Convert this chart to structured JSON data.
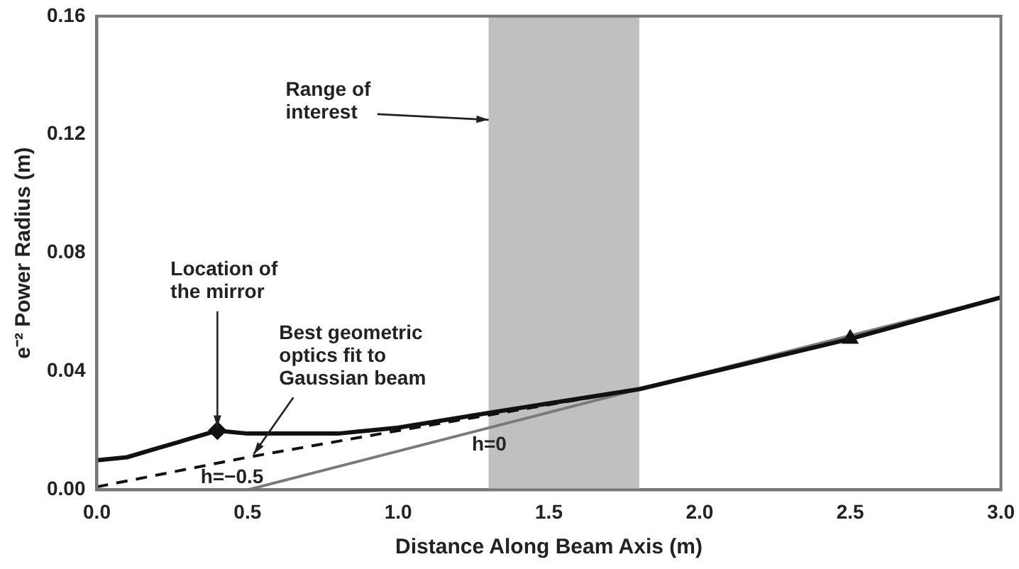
{
  "chart_data": {
    "type": "line",
    "xlabel": "Distance Along Beam Axis (m)",
    "ylabel": "e⁻² Power Radius (m)",
    "xlim": [
      0,
      3
    ],
    "ylim": [
      0,
      0.16
    ],
    "xticks": [
      {
        "value": 0,
        "label": "0.0"
      },
      {
        "value": 0.5,
        "label": "0.5"
      },
      {
        "value": 1,
        "label": "1.0"
      },
      {
        "value": 1.5,
        "label": "1.5"
      },
      {
        "value": 2,
        "label": "2.0"
      },
      {
        "value": 2.5,
        "label": "2.5"
      },
      {
        "value": 3,
        "label": "3.0"
      }
    ],
    "yticks": [
      {
        "value": 0,
        "label": "0.00"
      },
      {
        "value": 0.04,
        "label": "0.04"
      },
      {
        "value": 0.08,
        "label": "0.08"
      },
      {
        "value": 0.12,
        "label": "0.12"
      },
      {
        "value": 0.16,
        "label": "0.16"
      }
    ],
    "grid": false,
    "legend": false,
    "series": [
      {
        "color": "#111111",
        "x": [
          0,
          0.1,
          0.2,
          0.3,
          0.4,
          0.5,
          0.6,
          0.8,
          1.0,
          1.3,
          1.8,
          2.5,
          3.0
        ],
        "values": [
          0.01,
          0.011,
          0.014,
          0.017,
          0.02,
          0.019,
          0.019,
          0.019,
          0.021,
          0.026,
          0.034,
          0.051,
          0.065
        ],
        "line_style": "solid",
        "marker": "none"
      },
      {
        "name": "h=−0.5",
        "color": "#111111",
        "x": [
          0,
          0.5,
          1.0,
          1.8
        ],
        "values": [
          0.001,
          0.011,
          0.02,
          0.034
        ],
        "line_style": "dashed",
        "marker": "none"
      },
      {
        "name": "h=0",
        "color": "#7a7a7a",
        "x": [
          0.5,
          1.8,
          3.0
        ],
        "values": [
          0,
          0.034,
          0.065
        ],
        "line_style": "solid",
        "marker": "none"
      },
      {
        "type": "scatter",
        "color": "#111111",
        "x": [
          0.4
        ],
        "values": [
          0.02
        ],
        "marker": "diamond"
      },
      {
        "type": "scatter",
        "color": "#111111",
        "x": [
          2.5
        ],
        "values": [
          0.051
        ],
        "marker": "triangle"
      }
    ],
    "bands": [
      {
        "axis": "x",
        "from": 1.3,
        "to": 1.8,
        "color": "#c0c0c0"
      }
    ],
    "annotations": [
      {
        "text": "Range of interest",
        "x": 1.3,
        "y": 0.125
      },
      {
        "text": "Location of the mirror",
        "x": 0.4,
        "y": 0.021
      },
      {
        "text": "Best geometric optics fit to Gaussian beam",
        "x": 0.52,
        "y": 0.012
      }
    ]
  }
}
